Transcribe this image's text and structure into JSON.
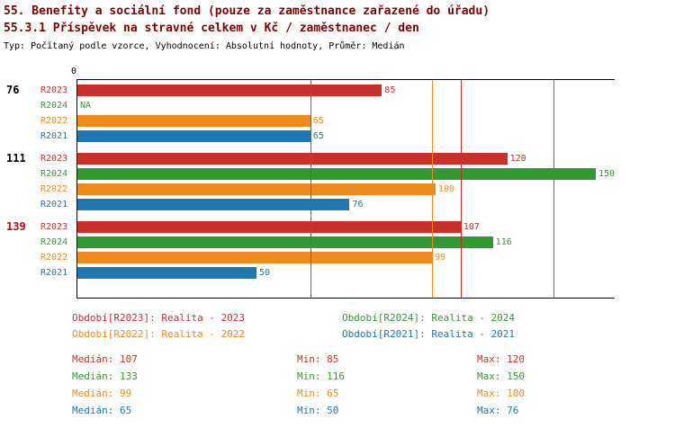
{
  "header": {
    "title_line1": "55. Benefity a sociální fond (pouze za zaměstnance zařazené do úřadu)",
    "title_line2": "55.3.1 Příspěvek na stravné celkem v Kč / zaměstnanec / den",
    "subtitle": "Typ: Počítaný podle vzorce, Vyhodnocení: Absolutní hodnoty, Průměr: Medián"
  },
  "colors": {
    "R2023": "#c9302c",
    "R2024": "#339933",
    "R2022": "#ef8a1c",
    "R2021": "#1f77b4",
    "title": "#800000",
    "group_label_highlight": "#cc0000",
    "group_label_default": "#000000",
    "axis": "#000000"
  },
  "chart_data": {
    "type": "bar",
    "orientation": "horizontal",
    "xlim": [
      0,
      150
    ],
    "origin_label": "0",
    "na_label": "NA",
    "series_order": [
      "R2023",
      "R2024",
      "R2022",
      "R2021"
    ],
    "groups": [
      {
        "label": "76",
        "highlight": false,
        "bars": [
          {
            "series": "R2023",
            "value": 85
          },
          {
            "series": "R2024",
            "value": null
          },
          {
            "series": "R2022",
            "value": 65
          },
          {
            "series": "R2021",
            "value": 65
          }
        ]
      },
      {
        "label": "111",
        "highlight": false,
        "bars": [
          {
            "series": "R2023",
            "value": 120
          },
          {
            "series": "R2024",
            "value": 150
          },
          {
            "series": "R2022",
            "value": 100
          },
          {
            "series": "R2021",
            "value": 76
          }
        ]
      },
      {
        "label": "139",
        "highlight": true,
        "bars": [
          {
            "series": "R2023",
            "value": 107
          },
          {
            "series": "R2024",
            "value": 116
          },
          {
            "series": "R2022",
            "value": 99
          },
          {
            "series": "R2021",
            "value": 50
          }
        ]
      }
    ],
    "median_lines": [
      {
        "series": "R2021",
        "value": 65
      },
      {
        "series": "R2022",
        "value": 99
      },
      {
        "series": "R2023",
        "value": 107
      },
      {
        "series": "R2024",
        "value": 133
      }
    ]
  },
  "legend": {
    "left_column": [
      {
        "series": "R2023",
        "text": "Období[R2023]: Realita - 2023"
      },
      {
        "series": "R2022",
        "text": "Období[R2022]: Realita - 2022"
      }
    ],
    "right_column": [
      {
        "series": "R2024",
        "text": "Období[R2024]: Realita - 2024"
      },
      {
        "series": "R2021",
        "text": "Období[R2021]: Realita - 2021"
      }
    ]
  },
  "stats": {
    "labels": {
      "median": "Medián",
      "min": "Min",
      "max": "Max"
    },
    "rows": [
      {
        "series": "R2023",
        "median": 107,
        "min": 85,
        "max": 120
      },
      {
        "series": "R2024",
        "median": 133,
        "min": 116,
        "max": 150
      },
      {
        "series": "R2022",
        "median": 99,
        "min": 65,
        "max": 100
      },
      {
        "series": "R2021",
        "median": 65,
        "min": 50,
        "max": 76
      }
    ]
  }
}
